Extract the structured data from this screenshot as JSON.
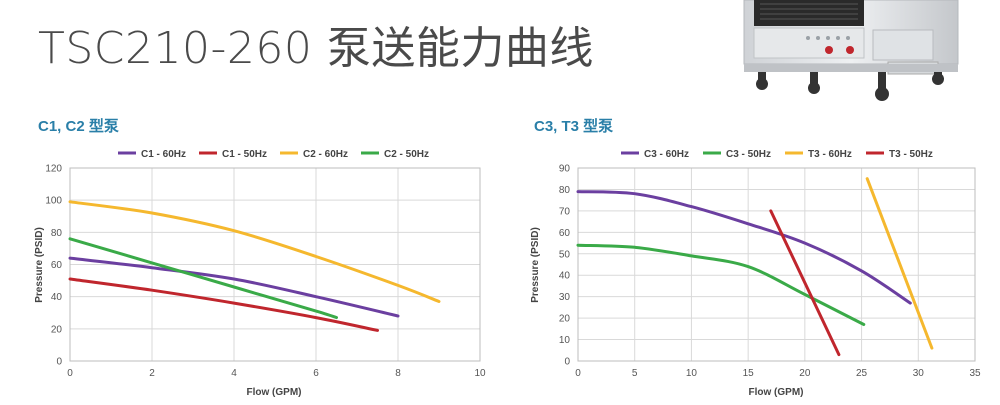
{
  "page": {
    "title": "TSC210-260 泵送能力曲线"
  },
  "chart_data": [
    {
      "type": "line",
      "title": "C1, C2 型泵",
      "xlabel": "Flow (GPM)",
      "ylabel": "Pressure (PSID)",
      "xlim": [
        0,
        10
      ],
      "ylim": [
        0,
        120
      ],
      "xticks": [
        0,
        2,
        4,
        6,
        8,
        10
      ],
      "yticks": [
        0,
        20,
        40,
        60,
        80,
        100,
        120
      ],
      "grid": true,
      "legend": "top",
      "series": [
        {
          "name": "C1 - 60Hz",
          "color": "#6b3fa0",
          "x": [
            0,
            2,
            4,
            6,
            8
          ],
          "y": [
            64,
            58,
            51,
            40,
            28
          ]
        },
        {
          "name": "C1 - 50Hz",
          "color": "#c0262d",
          "x": [
            0,
            2,
            4,
            6,
            7.5
          ],
          "y": [
            51,
            44,
            36,
            27,
            19
          ]
        },
        {
          "name": "C2 - 60Hz",
          "color": "#f5b82e",
          "x": [
            0,
            2,
            4,
            6,
            8,
            9
          ],
          "y": [
            99,
            92,
            81,
            65,
            47,
            37
          ]
        },
        {
          "name": "C2 - 50Hz",
          "color": "#3aaa48",
          "x": [
            0,
            2,
            4,
            6,
            6.5
          ],
          "y": [
            76,
            61,
            46,
            31,
            27
          ]
        }
      ]
    },
    {
      "type": "line",
      "title": "C3, T3 型泵",
      "xlabel": "Flow (GPM)",
      "ylabel": "Pressure (PSID)",
      "xlim": [
        0,
        35
      ],
      "ylim": [
        0,
        90
      ],
      "xticks": [
        0,
        5,
        10,
        15,
        20,
        25,
        30,
        35
      ],
      "yticks": [
        0,
        10,
        20,
        30,
        40,
        50,
        60,
        70,
        80,
        90
      ],
      "grid": true,
      "legend": "top",
      "series": [
        {
          "name": "C3 - 60Hz",
          "color": "#6b3fa0",
          "x": [
            0,
            5,
            10,
            15,
            20,
            25,
            29.3
          ],
          "y": [
            79,
            78,
            72,
            64,
            55,
            42,
            27
          ]
        },
        {
          "name": "C3 - 50Hz",
          "color": "#3aaa48",
          "x": [
            0,
            5,
            10,
            15,
            20,
            25.2
          ],
          "y": [
            54,
            53,
            49,
            44,
            31,
            17
          ]
        },
        {
          "name": "T3 - 60Hz",
          "color": "#f5b82e",
          "x": [
            25.5,
            31.2
          ],
          "y": [
            85,
            6
          ]
        },
        {
          "name": "T3 - 50Hz",
          "color": "#c0262d",
          "x": [
            17,
            23
          ],
          "y": [
            70,
            3
          ]
        }
      ]
    }
  ]
}
